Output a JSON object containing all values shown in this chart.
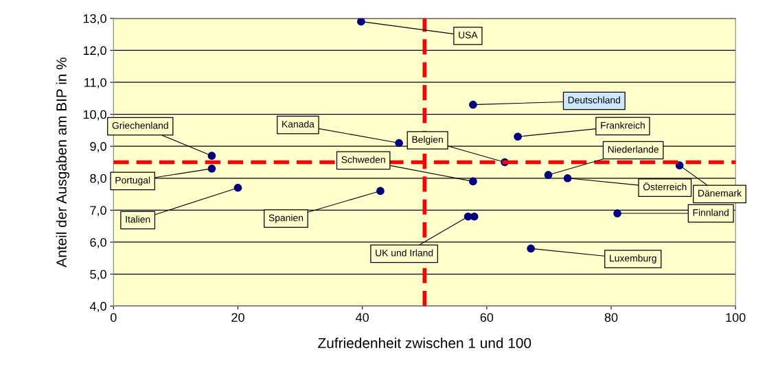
{
  "chart_data": {
    "type": "scatter",
    "xlabel": "Zufriedenheit zwischen 1 und 100",
    "ylabel": "Anteil der Ausgaben am BIP in %",
    "xlim": [
      0,
      100
    ],
    "ylim": [
      4,
      13
    ],
    "xticks": [
      0,
      20,
      40,
      60,
      80,
      100
    ],
    "yticks": [
      {
        "value": 4,
        "label": "4,0"
      },
      {
        "value": 5,
        "label": "5,0"
      },
      {
        "value": 6,
        "label": "6,0"
      },
      {
        "value": 7,
        "label": "7,0"
      },
      {
        "value": 8,
        "label": "8,0"
      },
      {
        "value": 9,
        "label": "9,0"
      },
      {
        "value": 10,
        "label": "10,0"
      },
      {
        "value": 11,
        "label": "11,0"
      },
      {
        "value": 12,
        "label": "12,0"
      },
      {
        "value": 13,
        "label": "13,0"
      }
    ],
    "grid": "y",
    "marker": "circle",
    "series": [
      {
        "color": "#000080",
        "x": [
          39.8,
          15.8,
          15.8,
          20,
          45.9,
          42.9,
          57.8,
          65,
          62.9,
          57.8,
          69.9,
          73,
          91,
          81,
          57,
          58,
          67.1
        ],
        "values": [
          12.9,
          8.7,
          8.3,
          7.7,
          9.1,
          7.6,
          10.3,
          9.3,
          8.5,
          7.9,
          8.1,
          8.0,
          8.4,
          6.9,
          6.8,
          6.8,
          5.8
        ]
      }
    ],
    "ref_lines": [
      {
        "axis": "y",
        "value": 8.5,
        "color": "#ff0000",
        "line_style": "dashed"
      },
      {
        "axis": "x",
        "value": 50,
        "color": "#ff0000",
        "line_style": "dashed"
      }
    ],
    "annotations": [
      {
        "text": "USA",
        "x": 39.8,
        "y": 12.9
      },
      {
        "text": "Griechenland",
        "x": 15.8,
        "y": 8.7
      },
      {
        "text": "Portugal",
        "x": 15.8,
        "y": 8.3
      },
      {
        "text": "Italien",
        "x": 20,
        "y": 7.7
      },
      {
        "text": "Kanada",
        "x": 45.9,
        "y": 9.1
      },
      {
        "text": "Spanien",
        "x": 42.9,
        "y": 7.6
      },
      {
        "text": "Deutschland",
        "x": 57.8,
        "y": 10.3
      },
      {
        "text": "Frankreich",
        "x": 65,
        "y": 9.3
      },
      {
        "text": "Belgien",
        "x": 62.9,
        "y": 8.5
      },
      {
        "text": "Schweden",
        "x": 57.8,
        "y": 7.9
      },
      {
        "text": "Niederlande",
        "x": 69.9,
        "y": 8.1
      },
      {
        "text": "Österreich",
        "x": 73,
        "y": 8.0
      },
      {
        "text": "Dänemark",
        "x": 91,
        "y": 8.4
      },
      {
        "text": "Finnland",
        "x": 81,
        "y": 6.9
      },
      {
        "text": "UK und Irland",
        "x": 57,
        "y": 6.8
      },
      {
        "text": "Luxemburg",
        "x": 67.1,
        "y": 5.8
      }
    ]
  }
}
